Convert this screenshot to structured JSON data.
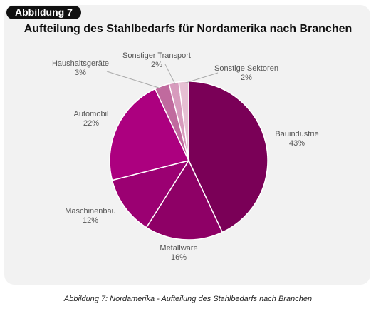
{
  "badge": "Abbildung 7",
  "caption": "Abbildung 7: Nordamerika - Aufteilung des Stahlbedarfs nach Branchen",
  "chart_data": {
    "type": "pie",
    "title": "Aufteilung des Stahlbedarfs für Nordamerika nach Branchen",
    "slices": [
      {
        "label": "Bauindustrie",
        "value": 43,
        "value_label": "43%",
        "color": "#7a0057"
      },
      {
        "label": "Metallware",
        "value": 16,
        "value_label": "16%",
        "color": "#8e0066"
      },
      {
        "label": "Maschinenbau",
        "value": 12,
        "value_label": "12%",
        "color": "#9b0072"
      },
      {
        "label": "Automobil",
        "value": 22,
        "value_label": "22%",
        "color": "#ac007f"
      },
      {
        "label": "Haushaltsgeräte",
        "value": 3,
        "value_label": "3%",
        "color": "#c06a9e"
      },
      {
        "label": "Sonstiger Transport",
        "value": 2,
        "value_label": "2%",
        "color": "#d79bbd"
      },
      {
        "label": "Sonstige Sektoren",
        "value": 2,
        "value_label": "2%",
        "color": "#e6bfd3"
      }
    ]
  }
}
